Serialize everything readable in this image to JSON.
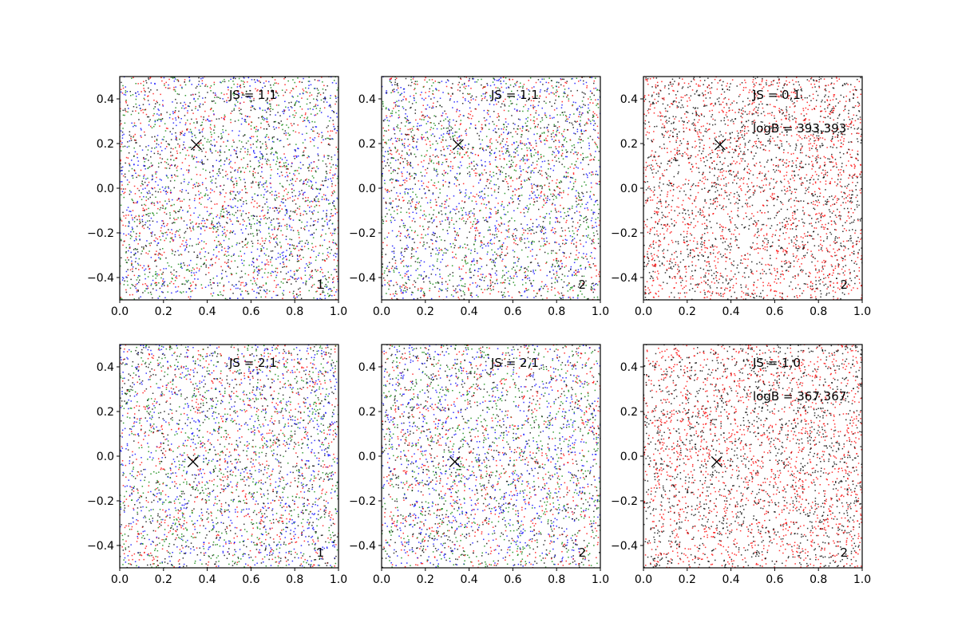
{
  "chart_data": [
    {
      "type": "scatter",
      "xlim": [
        0.0,
        1.0
      ],
      "ylim": [
        -0.5,
        0.5
      ],
      "xticks": [
        "0.0",
        "0.2",
        "0.4",
        "0.6",
        "0.8",
        "1.0"
      ],
      "yticks": [
        "-0.4",
        "-0.2",
        "0.0",
        "0.2",
        "0.4"
      ],
      "annotations": [
        "JS = 1,1"
      ],
      "corner_label": "1",
      "marker": {
        "symbol": "x",
        "x": 0.35,
        "y": 0.195
      },
      "point_colors": [
        "#ff0000",
        "#008000",
        "#0000ff",
        "#000000"
      ],
      "series_colors": [
        "red",
        "green",
        "blue",
        "black"
      ],
      "grid": false
    },
    {
      "type": "scatter",
      "xlim": [
        0.0,
        1.0
      ],
      "ylim": [
        -0.5,
        0.5
      ],
      "xticks": [
        "0.0",
        "0.2",
        "0.4",
        "0.6",
        "0.8",
        "1.0"
      ],
      "yticks": [
        "-0.4",
        "-0.2",
        "0.0",
        "0.2",
        "0.4"
      ],
      "annotations": [
        "JS = 1,1"
      ],
      "corner_label": "2",
      "marker": {
        "symbol": "x",
        "x": 0.35,
        "y": 0.195
      },
      "point_colors": [
        "#ff0000",
        "#008000",
        "#0000ff",
        "#000000"
      ],
      "series_colors": [
        "red",
        "green",
        "blue",
        "black"
      ],
      "grid": false
    },
    {
      "type": "scatter",
      "xlim": [
        0.0,
        1.0
      ],
      "ylim": [
        -0.5,
        0.5
      ],
      "xticks": [
        "0.0",
        "0.2",
        "0.4",
        "0.6",
        "0.8",
        "1.0"
      ],
      "yticks": [
        "-0.4",
        "-0.2",
        "0.0",
        "0.2",
        "0.4"
      ],
      "annotations": [
        "JS = 0,1",
        "logB = 393,393"
      ],
      "corner_label": "2",
      "marker": {
        "symbol": "x",
        "x": 0.35,
        "y": 0.195
      },
      "point_colors": [
        "#ff0000",
        "#000000"
      ],
      "series_colors": [
        "red",
        "black"
      ],
      "grid": false
    },
    {
      "type": "scatter",
      "xlim": [
        0.0,
        1.0
      ],
      "ylim": [
        -0.5,
        0.5
      ],
      "xticks": [
        "0.0",
        "0.2",
        "0.4",
        "0.6",
        "0.8",
        "1.0"
      ],
      "yticks": [
        "-0.4",
        "-0.2",
        "0.0",
        "0.2",
        "0.4"
      ],
      "annotations": [
        "JS = 2,1"
      ],
      "corner_label": "1",
      "marker": {
        "symbol": "x",
        "x": 0.335,
        "y": -0.025
      },
      "point_colors": [
        "#ff0000",
        "#008000",
        "#0000ff",
        "#000000"
      ],
      "series_colors": [
        "red",
        "green",
        "blue",
        "black"
      ],
      "grid": false
    },
    {
      "type": "scatter",
      "xlim": [
        0.0,
        1.0
      ],
      "ylim": [
        -0.5,
        0.5
      ],
      "xticks": [
        "0.0",
        "0.2",
        "0.4",
        "0.6",
        "0.8",
        "1.0"
      ],
      "yticks": [
        "-0.4",
        "-0.2",
        "0.0",
        "0.2",
        "0.4"
      ],
      "annotations": [
        "JS = 2,1"
      ],
      "corner_label": "2",
      "marker": {
        "symbol": "x",
        "x": 0.335,
        "y": -0.025
      },
      "point_colors": [
        "#ff0000",
        "#008000",
        "#0000ff",
        "#000000"
      ],
      "series_colors": [
        "red",
        "green",
        "blue",
        "black"
      ],
      "grid": false
    },
    {
      "type": "scatter",
      "xlim": [
        0.0,
        1.0
      ],
      "ylim": [
        -0.5,
        0.5
      ],
      "xticks": [
        "0.0",
        "0.2",
        "0.4",
        "0.6",
        "0.8",
        "1.0"
      ],
      "yticks": [
        "-0.4",
        "-0.2",
        "0.0",
        "0.2",
        "0.4"
      ],
      "annotations": [
        "JS = 1,0",
        "logB = 367,367"
      ],
      "corner_label": "2",
      "marker": {
        "symbol": "x",
        "x": 0.335,
        "y": -0.025
      },
      "point_colors": [
        "#ff0000",
        "#000000"
      ],
      "series_colors": [
        "red",
        "black"
      ],
      "grid": false
    }
  ]
}
